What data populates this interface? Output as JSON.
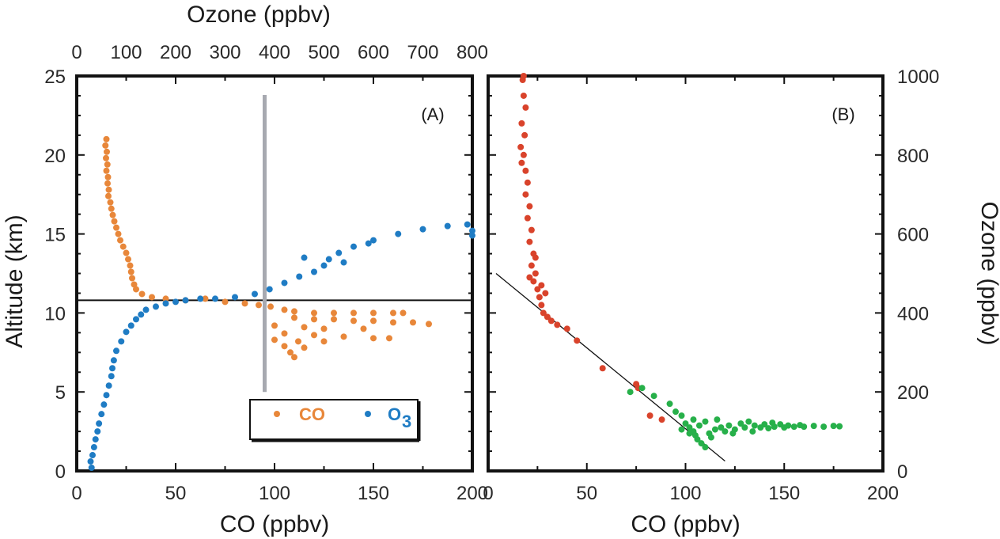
{
  "chart_data": [
    {
      "panel": "A",
      "type": "scatter",
      "panel_label": "(A)",
      "xlabel": "CO (ppbv)",
      "ylabel": "Altitude (km)",
      "x2label": "Ozone (ppbv)",
      "xlim": [
        0,
        200
      ],
      "ylim": [
        0,
        25
      ],
      "x2lim": [
        0,
        800
      ],
      "xticks": [
        "0",
        "50",
        "100",
        "150",
        "200"
      ],
      "yticks": [
        "0",
        "5",
        "10",
        "15",
        "20",
        "25"
      ],
      "x2ticks": [
        "0",
        "100",
        "200",
        "300",
        "400",
        "500",
        "600",
        "700",
        "800"
      ],
      "reference_lines": {
        "horizontal_altitude_km": 10.8,
        "vertical_ozone_ppbv": 380,
        "vertical_altitude_range_km": [
          5,
          23.8
        ]
      },
      "legend": [
        {
          "label": "CO",
          "color": "#E8873A"
        },
        {
          "label": "O",
          "subscript": "3",
          "color": "#1F7CC4"
        }
      ],
      "series": [
        {
          "name": "CO",
          "axis": "bottom",
          "color": "#E8873A",
          "points": [
            [
              15,
              21
            ],
            [
              14.5,
              20.6
            ],
            [
              15.2,
              20.2
            ],
            [
              14.8,
              19.8
            ],
            [
              15.5,
              19.4
            ],
            [
              15,
              19
            ],
            [
              15.8,
              18.6
            ],
            [
              15.6,
              18.2
            ],
            [
              16.2,
              17.8
            ],
            [
              16,
              17.4
            ],
            [
              17,
              17
            ],
            [
              17.5,
              16.6
            ],
            [
              18.2,
              16.2
            ],
            [
              19,
              15.8
            ],
            [
              20,
              15.4
            ],
            [
              21,
              15
            ],
            [
              22,
              14.6
            ],
            [
              23.5,
              14.2
            ],
            [
              25,
              13.8
            ],
            [
              26,
              13.4
            ],
            [
              27,
              13
            ],
            [
              27.5,
              12.6
            ],
            [
              28,
              12.2
            ],
            [
              29,
              11.8
            ],
            [
              30,
              11.5
            ],
            [
              33,
              11.2
            ],
            [
              38,
              11
            ],
            [
              45,
              10.9
            ],
            [
              55,
              10.8
            ],
            [
              65,
              10.9
            ],
            [
              75,
              10.7
            ],
            [
              85,
              10.6
            ],
            [
              92,
              10.5
            ],
            [
              98,
              10.4
            ],
            [
              105,
              10.2
            ],
            [
              110,
              10.1
            ],
            [
              120,
              10
            ],
            [
              130,
              10
            ],
            [
              140,
              10
            ],
            [
              150,
              10
            ],
            [
              160,
              10
            ],
            [
              165,
              10
            ],
            [
              110,
              9.7
            ],
            [
              120,
              9.6
            ],
            [
              130,
              9.6
            ],
            [
              140,
              9.5
            ],
            [
              150,
              9.5
            ],
            [
              160,
              9.4
            ],
            [
              170,
              9.4
            ],
            [
              178,
              9.3
            ],
            [
              100,
              9.2
            ],
            [
              115,
              9.1
            ],
            [
              125,
              9
            ],
            [
              145,
              9
            ],
            [
              105,
              8.7
            ],
            [
              120,
              8.6
            ],
            [
              135,
              8.5
            ],
            [
              150,
              8.4
            ],
            [
              158,
              8.4
            ],
            [
              100,
              8.3
            ],
            [
              112,
              8.2
            ],
            [
              125,
              8.2
            ],
            [
              105,
              7.9
            ],
            [
              115,
              7.8
            ],
            [
              108,
              7.5
            ],
            [
              110,
              7.2
            ]
          ]
        },
        {
          "name": "O3",
          "axis": "top",
          "color": "#1F7CC4",
          "points": [
            [
              30,
              0.2
            ],
            [
              28,
              0.6
            ],
            [
              32,
              1
            ],
            [
              35,
              1.5
            ],
            [
              38,
              2
            ],
            [
              42,
              2.5
            ],
            [
              45,
              3
            ],
            [
              50,
              3.6
            ],
            [
              55,
              4.2
            ],
            [
              60,
              4.8
            ],
            [
              65,
              5.4
            ],
            [
              70,
              6
            ],
            [
              72,
              6.5
            ],
            [
              75,
              7
            ],
            [
              80,
              7.6
            ],
            [
              90,
              8.2
            ],
            [
              100,
              8.8
            ],
            [
              110,
              9.2
            ],
            [
              120,
              9.6
            ],
            [
              130,
              9.9
            ],
            [
              140,
              10.2
            ],
            [
              160,
              10.4
            ],
            [
              180,
              10.6
            ],
            [
              200,
              10.7
            ],
            [
              220,
              10.8
            ],
            [
              250,
              10.9
            ],
            [
              280,
              10.9
            ],
            [
              320,
              11
            ],
            [
              360,
              11.2
            ],
            [
              390,
              11.5
            ],
            [
              420,
              11.9
            ],
            [
              450,
              12.3
            ],
            [
              480,
              12.6
            ],
            [
              500,
              13
            ],
            [
              510,
              13.4
            ],
            [
              530,
              13.8
            ],
            [
              560,
              14.2
            ],
            [
              600,
              14.6
            ],
            [
              650,
              15
            ],
            [
              700,
              15.3
            ],
            [
              750,
              15.5
            ],
            [
              790,
              15.6
            ],
            [
              800,
              15.2
            ],
            [
              800,
              14.9
            ],
            [
              460,
              13.5
            ],
            [
              540,
              13.2
            ],
            [
              590,
              14.4
            ]
          ]
        }
      ]
    },
    {
      "panel": "B",
      "type": "scatter",
      "panel_label": "(B)",
      "xlabel": "CO (ppbv)",
      "ylabel": "Ozone (ppbv)",
      "xlim": [
        0,
        200
      ],
      "ylim": [
        0,
        1000
      ],
      "xticks": [
        "0",
        "50",
        "100",
        "150",
        "200"
      ],
      "yticks": [
        "0",
        "200",
        "400",
        "600",
        "800",
        "1000"
      ],
      "fit_line": [
        [
          4,
          500
        ],
        [
          120,
          25
        ]
      ],
      "series": [
        {
          "name": "",
          "color": "#D9432B",
          "points": [
            [
              18,
              1000
            ],
            [
              17.5,
              990
            ],
            [
              18,
              950
            ],
            [
              19,
              920
            ],
            [
              17,
              880
            ],
            [
              18.5,
              850
            ],
            [
              16.5,
              820
            ],
            [
              18,
              800
            ],
            [
              17,
              780
            ],
            [
              19,
              760
            ],
            [
              20,
              730
            ],
            [
              19,
              700
            ],
            [
              21,
              670
            ],
            [
              20,
              640
            ],
            [
              22,
              610
            ],
            [
              21,
              580
            ],
            [
              23,
              550
            ],
            [
              22,
              520
            ],
            [
              24,
              500
            ],
            [
              23,
              480
            ],
            [
              25,
              460
            ],
            [
              26,
              440
            ],
            [
              27,
              420
            ],
            [
              28,
              400
            ],
            [
              30,
              390
            ],
            [
              32,
              380
            ],
            [
              35,
              370
            ],
            [
              40,
              360
            ],
            [
              45,
              330
            ],
            [
              58,
              260
            ],
            [
              75,
              220
            ],
            [
              76,
              210
            ],
            [
              82,
              140
            ],
            [
              88,
              130
            ],
            [
              24,
              540
            ],
            [
              21,
              490
            ],
            [
              27,
              470
            ],
            [
              29,
              450
            ]
          ]
        },
        {
          "name": "",
          "color": "#27B04A",
          "points": [
            [
              72,
              200
            ],
            [
              78,
              210
            ],
            [
              84,
              190
            ],
            [
              92,
              170
            ],
            [
              95,
              150
            ],
            [
              98,
              140
            ],
            [
              100,
              120
            ],
            [
              102,
              110
            ],
            [
              104,
              100
            ],
            [
              105,
              90
            ],
            [
              106,
              80
            ],
            [
              108,
              70
            ],
            [
              110,
              60
            ],
            [
              112,
              95
            ],
            [
              115,
              105
            ],
            [
              118,
              110
            ],
            [
              120,
              100
            ],
            [
              122,
              115
            ],
            [
              125,
              105
            ],
            [
              128,
              120
            ],
            [
              130,
              110
            ],
            [
              132,
              125
            ],
            [
              135,
              115
            ],
            [
              138,
              110
            ],
            [
              140,
              118
            ],
            [
              142,
              108
            ],
            [
              145,
              112
            ],
            [
              148,
              118
            ],
            [
              150,
              110
            ],
            [
              152,
              115
            ],
            [
              155,
              112
            ],
            [
              158,
              116
            ],
            [
              160,
              112
            ],
            [
              165,
              114
            ],
            [
              170,
              112
            ],
            [
              175,
              114
            ],
            [
              178,
              113
            ],
            [
              98,
              105
            ],
            [
              102,
              95
            ],
            [
              104,
              130
            ],
            [
              107,
              115
            ],
            [
              110,
              125
            ],
            [
              113,
              85
            ],
            [
              116,
              130
            ],
            [
              124,
              95
            ],
            [
              134,
              100
            ],
            [
              144,
              122
            ]
          ]
        }
      ]
    }
  ]
}
